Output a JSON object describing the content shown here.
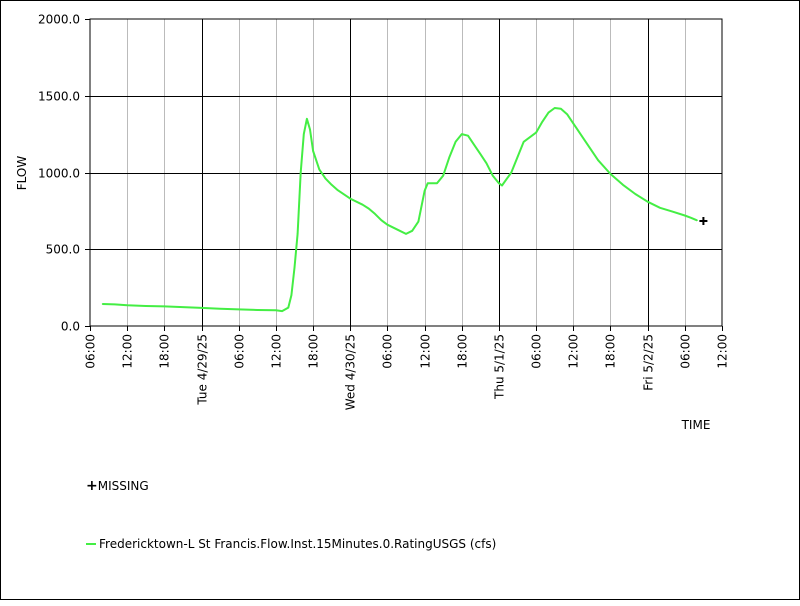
{
  "chart_data": {
    "type": "line",
    "ylabel": "FLOW",
    "xlabel": "TIME",
    "ylim": [
      0,
      2000
    ],
    "y_ticks": [
      "0.0",
      "500.0",
      "1000.0",
      "1500.0",
      "2000.0"
    ],
    "y_tick_values": [
      0,
      500,
      1000,
      1500,
      2000
    ],
    "x_range": [
      "2025-04-28T06:00",
      "2025-05-02T12:00"
    ],
    "x_ticks": [
      {
        "t": "2025-04-28T06:00",
        "label": "06:00"
      },
      {
        "t": "2025-04-28T12:00",
        "label": "12:00"
      },
      {
        "t": "2025-04-28T18:00",
        "label": "18:00"
      },
      {
        "t": "2025-04-29T00:00",
        "label": "Tue 4/29/25",
        "major": true
      },
      {
        "t": "2025-04-29T06:00",
        "label": "06:00"
      },
      {
        "t": "2025-04-29T12:00",
        "label": "12:00"
      },
      {
        "t": "2025-04-29T18:00",
        "label": "18:00"
      },
      {
        "t": "2025-04-30T00:00",
        "label": "Wed 4/30/25",
        "major": true
      },
      {
        "t": "2025-04-30T06:00",
        "label": "06:00"
      },
      {
        "t": "2025-04-30T12:00",
        "label": "12:00"
      },
      {
        "t": "2025-04-30T18:00",
        "label": "18:00"
      },
      {
        "t": "2025-05-01T00:00",
        "label": "Thu 5/1/25",
        "major": true
      },
      {
        "t": "2025-05-01T06:00",
        "label": "06:00"
      },
      {
        "t": "2025-05-01T12:00",
        "label": "12:00"
      },
      {
        "t": "2025-05-01T18:00",
        "label": "18:00"
      },
      {
        "t": "2025-05-02T00:00",
        "label": "Fri 5/2/25",
        "major": true
      },
      {
        "t": "2025-05-02T06:00",
        "label": "06:00"
      },
      {
        "t": "2025-05-02T12:00",
        "label": "12:00"
      }
    ],
    "grid": true,
    "series": [
      {
        "name": "Fredericktown-L St Francis.Flow.Inst.15Minutes.0.RatingUSGS (cfs)",
        "color": "#44ee44",
        "points": [
          [
            "2025-04-28T08:00",
            143
          ],
          [
            "2025-04-28T10:00",
            141
          ],
          [
            "2025-04-28T12:00",
            135
          ],
          [
            "2025-04-28T15:00",
            130
          ],
          [
            "2025-04-28T18:00",
            128
          ],
          [
            "2025-04-28T21:00",
            123
          ],
          [
            "2025-04-29T00:00",
            118
          ],
          [
            "2025-04-29T03:00",
            113
          ],
          [
            "2025-04-29T06:00",
            108
          ],
          [
            "2025-04-29T09:00",
            104
          ],
          [
            "2025-04-29T12:00",
            102
          ],
          [
            "2025-04-29T13:00",
            97
          ],
          [
            "2025-04-29T14:00",
            120
          ],
          [
            "2025-04-29T14:30",
            200
          ],
          [
            "2025-04-29T15:00",
            380
          ],
          [
            "2025-04-29T15:30",
            600
          ],
          [
            "2025-04-29T16:00",
            1000
          ],
          [
            "2025-04-29T16:30",
            1250
          ],
          [
            "2025-04-29T17:00",
            1350
          ],
          [
            "2025-04-29T17:30",
            1280
          ],
          [
            "2025-04-29T18:00",
            1140
          ],
          [
            "2025-04-29T19:00",
            1020
          ],
          [
            "2025-04-29T20:00",
            960
          ],
          [
            "2025-04-29T21:00",
            920
          ],
          [
            "2025-04-29T22:00",
            885
          ],
          [
            "2025-04-30T00:00",
            830
          ],
          [
            "2025-04-30T02:00",
            790
          ],
          [
            "2025-04-30T03:00",
            765
          ],
          [
            "2025-04-30T04:00",
            730
          ],
          [
            "2025-04-30T05:00",
            690
          ],
          [
            "2025-04-30T06:00",
            660
          ],
          [
            "2025-04-30T08:00",
            620
          ],
          [
            "2025-04-30T09:00",
            600
          ],
          [
            "2025-04-30T10:00",
            620
          ],
          [
            "2025-04-30T11:00",
            680
          ],
          [
            "2025-04-30T12:00",
            880
          ],
          [
            "2025-04-30T12:30",
            930
          ],
          [
            "2025-04-30T14:00",
            930
          ],
          [
            "2025-04-30T15:00",
            980
          ],
          [
            "2025-04-30T16:00",
            1100
          ],
          [
            "2025-04-30T17:00",
            1200
          ],
          [
            "2025-04-30T18:00",
            1250
          ],
          [
            "2025-04-30T19:00",
            1240
          ],
          [
            "2025-04-30T20:00",
            1180
          ],
          [
            "2025-04-30T21:00",
            1120
          ],
          [
            "2025-04-30T22:00",
            1060
          ],
          [
            "2025-04-30T23:00",
            980
          ],
          [
            "2025-05-01T00:00",
            930
          ],
          [
            "2025-05-01T00:30",
            915
          ],
          [
            "2025-05-01T02:00",
            1000
          ],
          [
            "2025-05-01T03:00",
            1100
          ],
          [
            "2025-05-01T04:00",
            1200
          ],
          [
            "2025-05-01T05:00",
            1230
          ],
          [
            "2025-05-01T06:00",
            1260
          ],
          [
            "2025-05-01T07:00",
            1330
          ],
          [
            "2025-05-01T08:00",
            1390
          ],
          [
            "2025-05-01T09:00",
            1420
          ],
          [
            "2025-05-01T10:00",
            1415
          ],
          [
            "2025-05-01T11:00",
            1380
          ],
          [
            "2025-05-01T12:00",
            1320
          ],
          [
            "2025-05-01T14:00",
            1200
          ],
          [
            "2025-05-01T16:00",
            1080
          ],
          [
            "2025-05-01T18:00",
            990
          ],
          [
            "2025-05-01T20:00",
            920
          ],
          [
            "2025-05-01T22:00",
            860
          ],
          [
            "2025-05-02T00:00",
            810
          ],
          [
            "2025-05-02T02:00",
            770
          ],
          [
            "2025-05-02T04:00",
            745
          ],
          [
            "2025-05-02T06:00",
            720
          ],
          [
            "2025-05-02T07:00",
            705
          ],
          [
            "2025-05-02T08:00",
            688
          ]
        ]
      }
    ],
    "missing": {
      "label": "MISSING",
      "points": [
        [
          "2025-05-02T09:00",
          684
        ]
      ]
    }
  }
}
